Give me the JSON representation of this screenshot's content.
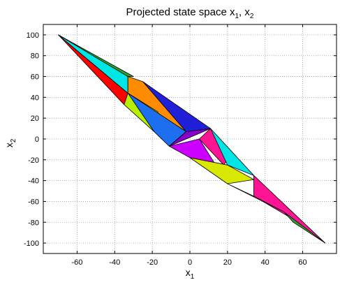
{
  "chart_data": {
    "type": "area",
    "title": "Projected state space x",
    "title_sub1": "1",
    "title_mid": ", x",
    "title_sub2": "2",
    "xlabel": "x",
    "xlabel_sub": "1",
    "ylabel": "x",
    "ylabel_sub": "2",
    "xlim": [
      -78,
      78
    ],
    "ylim": [
      -110,
      110
    ],
    "xticks": [
      -60,
      -40,
      -20,
      0,
      20,
      40,
      60
    ],
    "yticks": [
      100,
      80,
      60,
      40,
      20,
      0,
      -20,
      -40,
      -60,
      -80,
      -100
    ],
    "grid": true,
    "grid_style": "dotted",
    "regions": [
      {
        "color": "#ff0000",
        "points": [
          [
            -70,
            100
          ],
          [
            -33,
            44
          ],
          [
            -35,
            33
          ]
        ]
      },
      {
        "color": "#00e5e5",
        "points": [
          [
            -70,
            100
          ],
          [
            -33,
            60
          ],
          [
            -33,
            44
          ]
        ]
      },
      {
        "color": "#2aa52a",
        "points": [
          [
            -70,
            100
          ],
          [
            -33,
            60
          ],
          [
            -30,
            60
          ]
        ]
      },
      {
        "color": "#ff8c00",
        "points": [
          [
            -33,
            60
          ],
          [
            -33,
            44
          ],
          [
            -2,
            7
          ],
          [
            -25,
            55
          ]
        ]
      },
      {
        "color": "#b8f000",
        "points": [
          [
            -35,
            33
          ],
          [
            -33,
            44
          ],
          [
            -17,
            26
          ],
          [
            -19,
            7
          ]
        ]
      },
      {
        "color": "#1e6ef0",
        "points": [
          [
            -33,
            44
          ],
          [
            -2,
            7
          ],
          [
            -11,
            -7
          ],
          [
            -19,
            7
          ]
        ]
      },
      {
        "color": "#2020d8",
        "points": [
          [
            -25,
            55
          ],
          [
            -2,
            7
          ],
          [
            11,
            10
          ]
        ]
      },
      {
        "color": "#8800cc",
        "points": [
          [
            -11,
            -7
          ],
          [
            -2,
            7
          ],
          [
            11,
            10
          ]
        ]
      },
      {
        "color": "#cc00ff",
        "points": [
          [
            -11,
            -7
          ],
          [
            0,
            -18
          ],
          [
            20,
            -43
          ],
          [
            5,
            0
          ]
        ]
      },
      {
        "color": "#ff1493",
        "points": [
          [
            5,
            0
          ],
          [
            11,
            10
          ],
          [
            20,
            -20
          ],
          [
            18,
            -25
          ]
        ]
      },
      {
        "color": "#d8e800",
        "points": [
          [
            0,
            -18
          ],
          [
            20,
            -25
          ],
          [
            34,
            -39
          ],
          [
            20,
            -43
          ]
        ]
      },
      {
        "color": "#00e5e5",
        "points": [
          [
            11,
            10
          ],
          [
            34,
            -35
          ],
          [
            20,
            -25
          ]
        ]
      },
      {
        "color": "#ff1493",
        "points": [
          [
            34,
            -35
          ],
          [
            34,
            -55
          ],
          [
            52,
            -74
          ],
          [
            72,
            -100
          ]
        ]
      },
      {
        "color": "#1e6ef0",
        "points": [
          [
            20,
            -43
          ],
          [
            34,
            -55
          ],
          [
            50,
            -70
          ]
        ]
      },
      {
        "color": "#2aa52a",
        "points": [
          [
            50,
            -70
          ],
          [
            72,
            -100
          ],
          [
            55,
            -80
          ]
        ]
      }
    ]
  }
}
